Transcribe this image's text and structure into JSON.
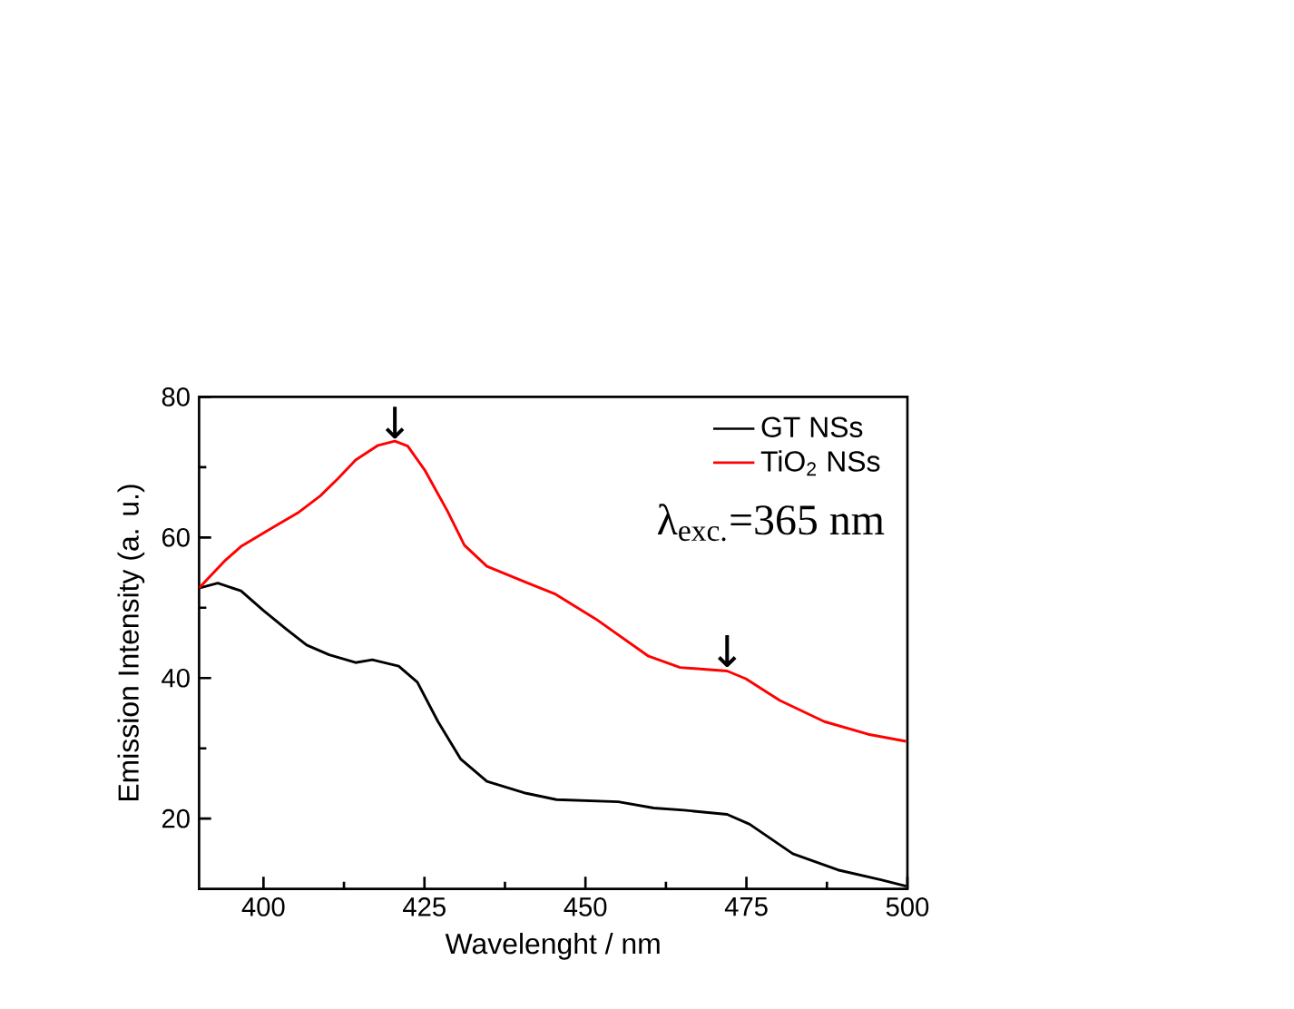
{
  "chart_data": {
    "type": "line",
    "xlabel": "Wavelenght / nm",
    "ylabel": "Emission Intensity (a. u.)",
    "xlim": [
      390,
      500
    ],
    "ylim": [
      10,
      80
    ],
    "xticks": [
      400,
      425,
      450,
      475,
      500
    ],
    "yticks": [
      20,
      40,
      60,
      80
    ],
    "legend": "top right",
    "grid": false,
    "marker": "none",
    "line_style": "solid",
    "annotations": [
      "λ$_{exc.}$=365 nm",
      {
        "text": "↓",
        "x": 420.4,
        "y": 74
      },
      {
        "text": "↓",
        "x": 472,
        "y": 41.5
      }
    ],
    "series": [
      {
        "name": "GT NSs",
        "color": "#000000",
        "x": [
          390,
          392.9,
          396.5,
          400,
          403.5,
          406.7,
          410.2,
          414.3,
          416.9,
          421.0,
          423.9,
          427.1,
          430.6,
          434.7,
          440.8,
          445.5,
          455.1,
          460.6,
          465.3,
          472.0,
          475.5,
          482.2,
          489.2,
          495.9,
          499.8
        ],
        "values": [
          52.8,
          53.5,
          52.4,
          49.6,
          47.0,
          44.7,
          43.3,
          42.2,
          42.6,
          41.7,
          39.4,
          33.8,
          28.5,
          25.3,
          23.6,
          22.7,
          22.4,
          21.5,
          21.2,
          20.6,
          19.2,
          15.0,
          12.7,
          11.3,
          10.4
        ]
      },
      {
        "name": "TiO$_{2}$ NSs",
        "color": "#ff0000",
        "x": [
          390,
          393.9,
          396.5,
          401.4,
          405.5,
          408.8,
          411.6,
          414.3,
          417.8,
          420.4,
          422.4,
          425.1,
          428.6,
          431.2,
          434.7,
          440.8,
          445.2,
          451.6,
          459.8,
          464.7,
          472.0,
          474.9,
          480.2,
          487.1,
          493.9,
          499.8
        ],
        "values": [
          52.8,
          56.6,
          58.7,
          61.4,
          63.6,
          65.9,
          68.4,
          71.0,
          73.1,
          73.7,
          73.0,
          69.5,
          63.7,
          58.9,
          55.9,
          53.6,
          52.0,
          48.4,
          43.1,
          41.5,
          41.0,
          39.9,
          36.8,
          33.8,
          32.0,
          31.0
        ]
      }
    ]
  }
}
